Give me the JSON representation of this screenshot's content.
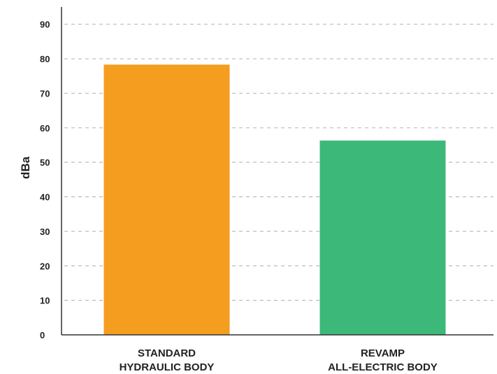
{
  "chart_data": {
    "type": "bar",
    "categories": [
      [
        "STANDARD",
        "HYDRAULIC BODY"
      ],
      [
        "REVAMP",
        "ALL-ELECTRIC BODY"
      ]
    ],
    "values": [
      78.3,
      56.3
    ],
    "bar_colors": [
      "#F59D1E",
      "#3CB878"
    ],
    "title": "",
    "xlabel": "",
    "ylabel": "dBa",
    "ylim": [
      0,
      95
    ],
    "yticks": [
      0,
      10,
      20,
      30,
      40,
      50,
      60,
      70,
      80,
      90
    ],
    "grid": true,
    "grid_style": "dashed",
    "grid_color": "#BBBBBB",
    "axis_color": "#333333"
  }
}
